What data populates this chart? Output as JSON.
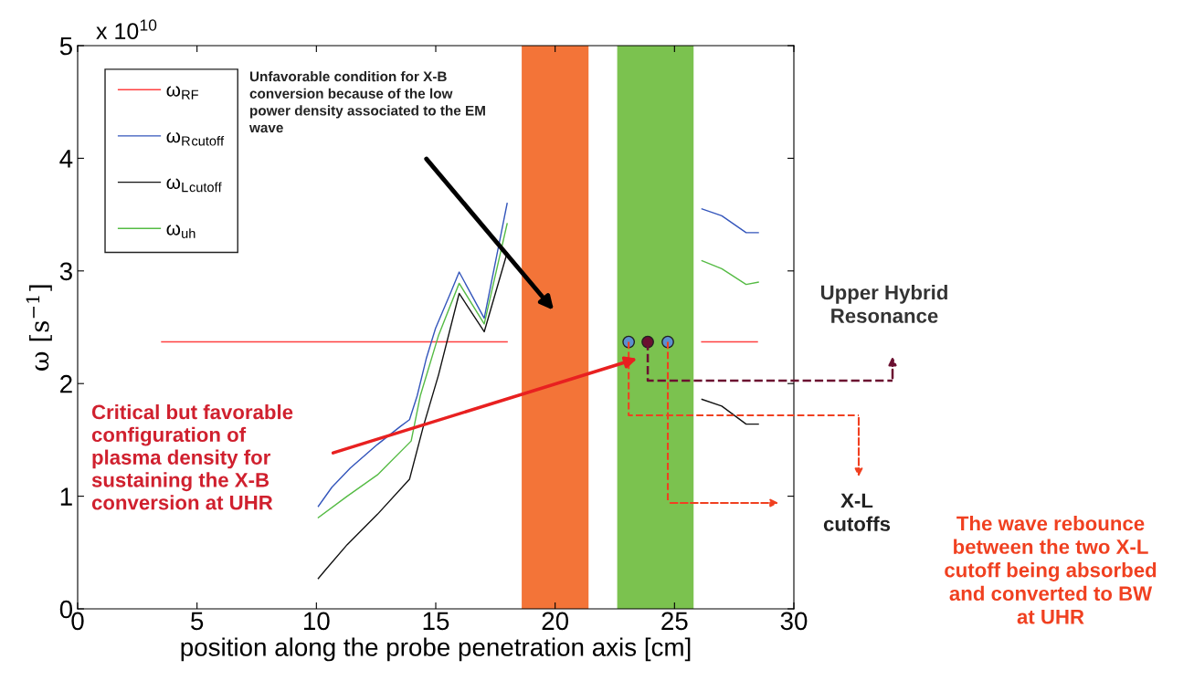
{
  "chart_data": {
    "type": "line",
    "xlabel": "position along the probe penetration axis [cm]",
    "ylabel": "ω [s$^{−1}$]",
    "xlim": [
      0,
      30
    ],
    "xticks": [
      0,
      5,
      10,
      15,
      20,
      25,
      30
    ],
    "ylim": [
      0,
      5
    ],
    "yticks": [
      0,
      1,
      2,
      3,
      4,
      5
    ],
    "grid": false,
    "legend": "top left",
    "marker": "none",
    "line_style": "solid",
    "series": [
      {
        "name": "ω$_{RF}$",
        "color": "#ff4040",
        "x": [
          3.52,
          17.99,
          22,
          26.14,
          28.47
        ],
        "values": [
          2.37,
          2.37,
          null,
          2.37,
          2.37
        ]
      },
      {
        "name": "ω$_{R}$$_{cutoff}$",
        "color": "#3355bb",
        "x": [
          10.08,
          10.65,
          11.42,
          12.56,
          13.52,
          13.9,
          14.22,
          14.6,
          14.99,
          15.63,
          15.98,
          17.03,
          17.99,
          22,
          26.15,
          26.98,
          28.0,
          28.51
        ],
        "values": [
          0.91,
          1.08,
          1.25,
          1.46,
          1.62,
          1.68,
          1.89,
          2.22,
          2.49,
          2.81,
          2.99,
          2.58,
          3.6,
          null,
          3.55,
          3.49,
          3.34,
          3.34
        ]
      },
      {
        "name": "ω$_{L}$$_{cutoff}$",
        "color": "#111111",
        "x": [
          10.08,
          10.4,
          11.29,
          12.56,
          13.9,
          14.48,
          15.12,
          15.98,
          17.03,
          17.99,
          22,
          26.15,
          26.98,
          28.0,
          28.51
        ],
        "values": [
          0.27,
          0.35,
          0.57,
          0.84,
          1.15,
          1.62,
          2.08,
          2.8,
          2.46,
          3.16,
          null,
          1.86,
          1.8,
          1.64,
          1.64
        ]
      },
      {
        "name": "ω$_{uh}$",
        "color": "#55bb44",
        "x": [
          10.08,
          11.29,
          12.56,
          13.97,
          14.35,
          15.12,
          15.98,
          17.03,
          17.99,
          22,
          26.15,
          26.98,
          28.0,
          28.51
        ],
        "values": [
          0.81,
          1.0,
          1.19,
          1.49,
          1.89,
          2.43,
          2.89,
          2.53,
          3.42,
          null,
          3.09,
          3.02,
          2.88,
          2.9
        ]
      },
      {
        "type": "scatter",
        "marker": "circle",
        "x": [
          23.08,
          23.88,
          24.72
        ],
        "values": [
          2.37,
          2.37,
          2.37
        ],
        "colors": [
          "#5b8fd0",
          "#6b1030",
          "#5b8fd0"
        ]
      }
    ],
    "bands": [
      {
        "axis": "x",
        "from": 18.6,
        "to": 21.4,
        "color": "#f26522"
      },
      {
        "axis": "x",
        "from": 22.6,
        "to": 25.8,
        "color": "#6dbb3c"
      }
    ],
    "annotations": [
      "x 10$^{10}$",
      "Unfavorable condition for X-B\nconversion because of the low\npower density associated to the EM\nwave",
      "Critical but favorable\nconfiguration of\nplasma density for\nsustaining the X-B\nconversion at UHR",
      "Upper Hybrid\nResonance",
      "X-L\ncutoffs",
      "The wave rebounce\nbetween the two X-L\ncutoff being absorbed\nand converted to BW\nat UHR"
    ]
  }
}
